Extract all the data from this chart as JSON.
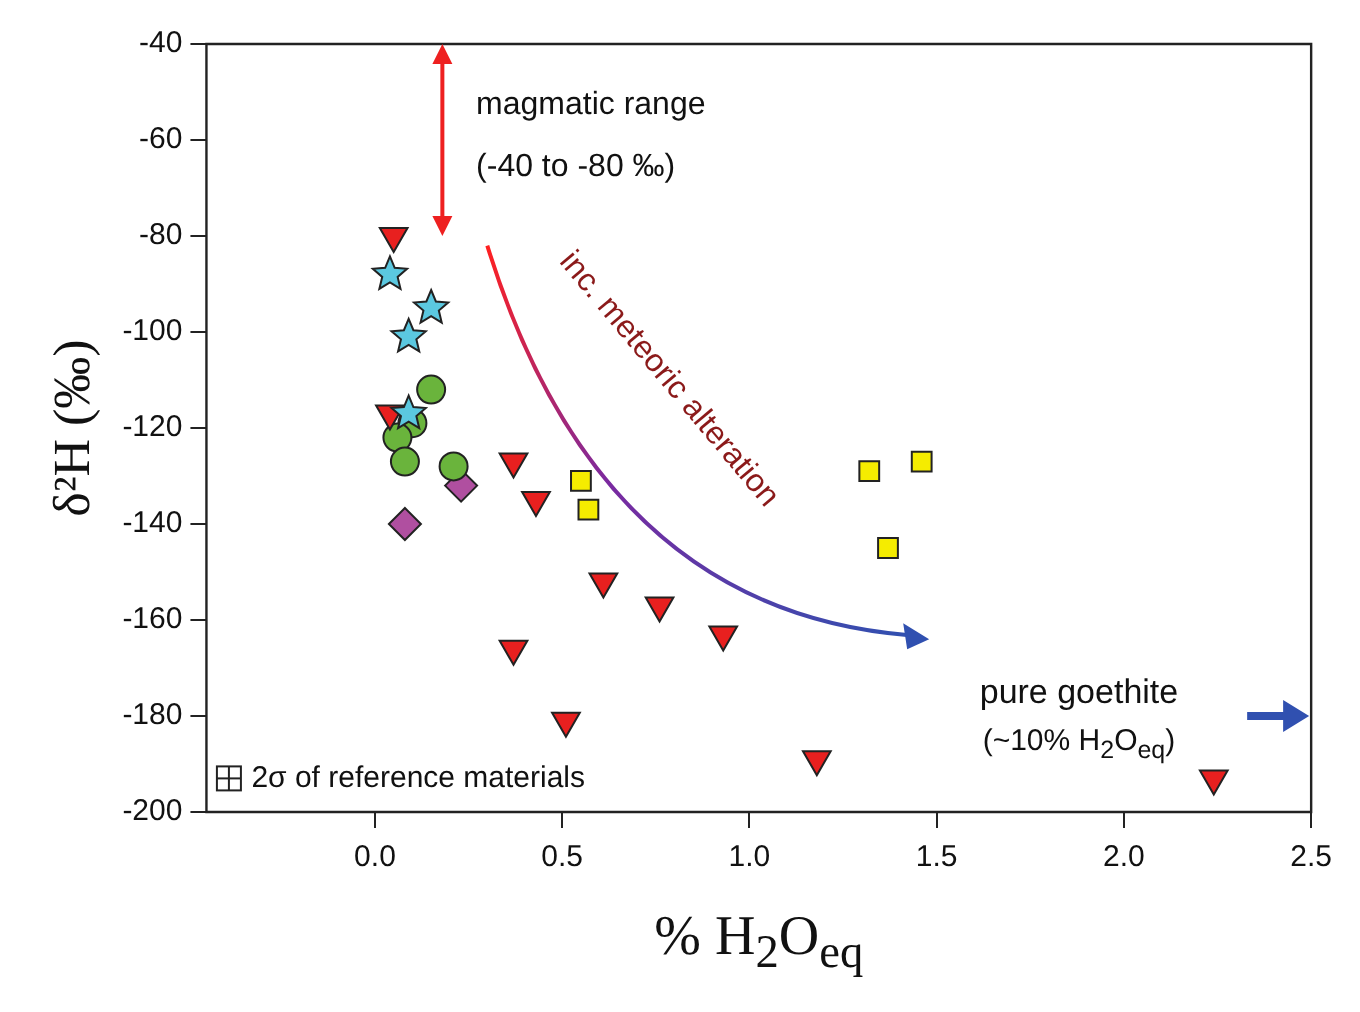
{
  "chart_data": {
    "type": "scatter",
    "xlabel": "% H$_{2}$O$_{eq}$",
    "ylabel": "δ²H (‰)",
    "xlim": [
      -0.45,
      2.5
    ],
    "xticks": [
      {
        "value": 0,
        "label": "0.0"
      },
      0.5,
      {
        "value": 1,
        "label": "1.0"
      },
      1.5,
      {
        "value": 2,
        "label": "2.0"
      },
      2.5
    ],
    "ylim": [
      -200,
      -40
    ],
    "yticks": [
      -200,
      -180,
      -160,
      -140,
      -120,
      -100,
      -80,
      -60,
      -40
    ],
    "grid": false,
    "legend": false,
    "series": [
      {
        "color": "#e8201f",
        "marker": "triangle",
        "x": [
          0.05,
          0.04,
          0.37,
          0.43,
          0.37,
          0.61,
          0.76,
          0.93,
          0.51,
          1.18,
          2.24
        ],
        "values": [
          -80,
          -117,
          -127,
          -135,
          -166,
          -152,
          -157,
          -163,
          -181,
          -189,
          -193
        ]
      },
      {
        "color": "#5bc8e0",
        "marker": "star",
        "x": [
          0.04,
          0.15,
          0.09,
          0.09
        ],
        "values": [
          -88,
          -95,
          -101,
          -117
        ]
      },
      {
        "color": "#6ab43c",
        "marker": "circle",
        "x": [
          0.15,
          0.1,
          0.06,
          0.08,
          0.21
        ],
        "values": [
          -112,
          -119,
          -122,
          -127,
          -128
        ]
      },
      {
        "color": "#b04fa0",
        "marker": "diamond",
        "x": [
          0.23,
          0.08
        ],
        "values": [
          -132,
          -140
        ]
      },
      {
        "color": "#f5ec00",
        "marker": "square",
        "x": [
          0.55,
          0.57,
          1.32,
          1.46,
          1.37
        ],
        "values": [
          -131,
          -137,
          -129,
          -127,
          -145
        ]
      }
    ],
    "annotations": [
      "magmatic range",
      "(-40 to -80 ‰)",
      "inc. meteoric alteration",
      "pure goethite",
      "(~10% H$_{2}$O$_{eq}$)",
      "2σ of reference materials"
    ]
  }
}
